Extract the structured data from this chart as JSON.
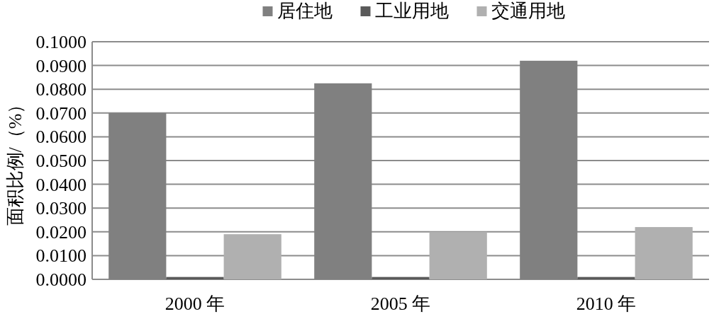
{
  "chart_data": {
    "type": "bar",
    "ylabel": "面积比例/（%）",
    "categories": [
      "2000 年",
      "2005 年",
      "2010 年"
    ],
    "series": [
      {
        "name": "居住地",
        "color": "#808080",
        "values": [
          0.07,
          0.0825,
          0.092
        ]
      },
      {
        "name": "工业用地",
        "color": "#5a5a5a",
        "values": [
          0.001,
          0.001,
          0.001
        ]
      },
      {
        "name": "交通用地",
        "color": "#b0b0b0",
        "values": [
          0.019,
          0.02,
          0.022
        ]
      }
    ],
    "ylim": [
      0,
      0.1
    ],
    "yticks": [
      {
        "value": 0,
        "label": "0.0000"
      },
      {
        "value": 0.01,
        "label": "0.0100"
      },
      {
        "value": 0.02,
        "label": "0.0200"
      },
      {
        "value": 0.03,
        "label": "0.0300"
      },
      {
        "value": 0.04,
        "label": "0.0400"
      },
      {
        "value": 0.05,
        "label": "0.0500"
      },
      {
        "value": 0.06,
        "label": "0.0600"
      },
      {
        "value": 0.07,
        "label": "0.0700"
      },
      {
        "value": 0.08,
        "label": "0.0800"
      },
      {
        "value": 0.09,
        "label": "0.0900"
      },
      {
        "value": 0.1,
        "label": "0.1000"
      }
    ],
    "grid": "y",
    "legend": "top"
  }
}
